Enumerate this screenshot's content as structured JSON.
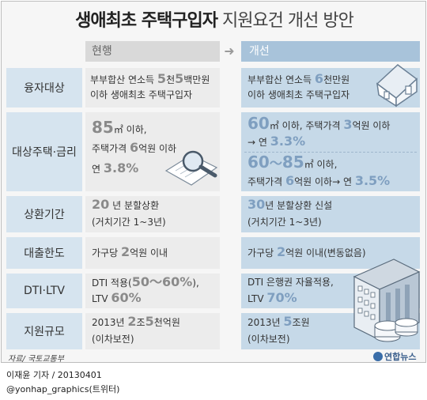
{
  "title": {
    "bold": "생애최초 주택구입자",
    "light": "지원요건 개선 방안"
  },
  "header": {
    "current": "현행",
    "arrow": "➜",
    "improved": "개선"
  },
  "rows": [
    {
      "label": "융자대상",
      "current": {
        "l1a": "부부합산 연소득 ",
        "n1": "5",
        "l1b": "천",
        "n2": "5",
        "l1c": "백만원",
        "l2": "이하 생애최초 주택구입자"
      },
      "improved": {
        "l1a": "부부합산 연소득 ",
        "n1": "6",
        "l1b": "천만원",
        "l2": "이하 생애최초 주택구입자"
      }
    },
    {
      "label": "대상주택·금리",
      "current": {
        "n1": "85",
        "l1": "㎡ 이하,",
        "l2a": "주택가격 ",
        "n2": "6",
        "l2b": "억원 이하",
        "l3a": "연 ",
        "n3": "3.8%"
      },
      "improved": {
        "a_n1": "60",
        "a_l1a": "㎡ 이하, 주택가격 ",
        "a_n2": "3",
        "a_l1b": "억원 이하",
        "a_l2a": "→ 연 ",
        "a_n3": "3.3%",
        "b_n1": "60",
        "b_tilde": "～",
        "b_n2": "85",
        "b_l1": "㎡ 이하,",
        "b_l2a": "주택가격 ",
        "b_n3": "6",
        "b_l2b": "억원 이하→ 연 ",
        "b_n4": "3.5%"
      }
    },
    {
      "label": "상환기간",
      "current": {
        "n1": "20",
        "l1": "년 분할상환",
        "l2": "(거치기간 1~3년)"
      },
      "improved": {
        "n1": "30",
        "l1": "년 분할상환 신설",
        "l2": "(거치기간 1~3년)"
      }
    },
    {
      "label": "대출한도",
      "current": {
        "l1a": "가구당 ",
        "n1": "2",
        "l1b": "억원 이내"
      },
      "improved": {
        "l1a": "가구당 ",
        "n1": "2",
        "l1b": "억원 이내",
        "l1c": "(변동없음)"
      }
    },
    {
      "label": "DTI·LTV",
      "current": {
        "l1a": "DTI 적용(",
        "n1": "50",
        "tilde": "～",
        "n2": "60%",
        "l1b": "),",
        "l2a": "LTV ",
        "n3": "60%"
      },
      "improved": {
        "l1": "DTI 은행권 자율적용,",
        "l2a": "LTV ",
        "n1": "70%"
      }
    },
    {
      "label": "지원규모",
      "current": {
        "l1a": "2013년 ",
        "n1": "2",
        "l1b": "조",
        "n2": "5",
        "l1c": "천억원",
        "l2": "(이차보전)"
      },
      "improved": {
        "l1a": "2013년 ",
        "n1": "5",
        "l1b": "조원",
        "l2": "(이차보전)"
      }
    }
  ],
  "source": "자료/ 국토교통부",
  "logo": "연합뉴스",
  "credit": {
    "line1": "이재윤 기자 / 20130401",
    "line2": "@yonhap_graphics(트위터)"
  },
  "colors": {
    "accent": "#7f9fc0",
    "label_bg": "#d6e4ef",
    "improved_bg": "#c6d9e8",
    "current_bg": "#ececec"
  },
  "icons": [
    "house-icon",
    "magnifier-document-icon",
    "bank-building-icon"
  ]
}
